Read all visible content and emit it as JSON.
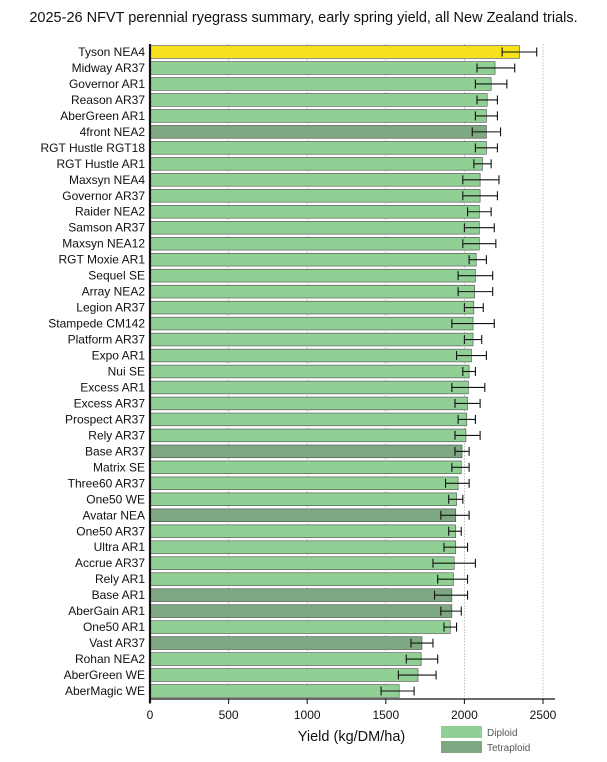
{
  "chart_data": {
    "type": "bar",
    "orientation": "horizontal",
    "title": "2025-26 NFVT perennial ryegrass summary, early spring yield, all New Zealand trials.",
    "xlabel": "Yield (kg/DM/ha)",
    "ylabel": "",
    "xlim": [
      0,
      2500
    ],
    "xticks": [
      0,
      500,
      1000,
      1500,
      2000,
      2500
    ],
    "grid": "vertical dotted",
    "legend_position": "bottom-right",
    "legend": [
      {
        "name": "Diploid",
        "color": "#90d094"
      },
      {
        "name": "Tetraploid",
        "color": "#7ea882"
      }
    ],
    "highlight_color": "#f5e21c",
    "categories": [
      "Tyson NEA4",
      "Midway AR37",
      "Governor AR1",
      "Reason AR37",
      "AberGreen AR1",
      "4front NEA2",
      "RGT Hustle RGT18",
      "RGT Hustle AR1",
      "Maxsyn NEA4",
      "Governor AR37",
      "Raider NEA2",
      "Samson AR37",
      "Maxsyn NEA12",
      "RGT Moxie AR1",
      "Sequel SE",
      "Array NEA2",
      "Legion AR37",
      "Stampede CM142",
      "Platform AR37",
      "Expo AR1",
      "Nui SE",
      "Excess AR1",
      "Excess AR37",
      "Prospect AR37",
      "Rely AR37",
      "Base AR37",
      "Matrix SE",
      "Three60 AR37",
      "One50 WE",
      "Avatar NEA",
      "One50 AR37",
      "Ultra AR1",
      "Accrue AR37",
      "Rely AR1",
      "Base AR1",
      "AberGain AR1",
      "One50 AR1",
      "Vast AR37",
      "Rohan NEA2",
      "AberGreen WE",
      "AberMagic WE"
    ],
    "values": [
      2350,
      2195,
      2170,
      2145,
      2140,
      2140,
      2140,
      2115,
      2100,
      2100,
      2095,
      2095,
      2095,
      2075,
      2070,
      2065,
      2060,
      2055,
      2055,
      2045,
      2030,
      2025,
      2020,
      2015,
      2010,
      1985,
      1980,
      1960,
      1950,
      1945,
      1945,
      1945,
      1935,
      1930,
      1920,
      1920,
      1910,
      1730,
      1725,
      1705,
      1585
    ],
    "error_low": [
      2240,
      2080,
      2070,
      2080,
      2070,
      2050,
      2070,
      2060,
      1990,
      1990,
      2020,
      2000,
      1990,
      2030,
      1960,
      1960,
      2000,
      1920,
      2000,
      1950,
      1990,
      1920,
      1940,
      1960,
      1940,
      1940,
      1920,
      1880,
      1900,
      1850,
      1900,
      1870,
      1800,
      1830,
      1810,
      1850,
      1870,
      1660,
      1630,
      1580,
      1470
    ],
    "error_high": [
      2460,
      2320,
      2270,
      2210,
      2210,
      2230,
      2210,
      2170,
      2220,
      2210,
      2170,
      2190,
      2200,
      2140,
      2180,
      2180,
      2120,
      2190,
      2110,
      2140,
      2070,
      2130,
      2100,
      2070,
      2100,
      2030,
      2030,
      2030,
      1990,
      2030,
      1980,
      2020,
      2070,
      2020,
      2020,
      1980,
      1950,
      1800,
      1830,
      1820,
      1680
    ],
    "ploidy": [
      "highlight",
      "Diploid",
      "Diploid",
      "Diploid",
      "Diploid",
      "Tetraploid",
      "Diploid",
      "Diploid",
      "Diploid",
      "Diploid",
      "Diploid",
      "Diploid",
      "Diploid",
      "Diploid",
      "Diploid",
      "Diploid",
      "Diploid",
      "Diploid",
      "Diploid",
      "Diploid",
      "Diploid",
      "Diploid",
      "Diploid",
      "Diploid",
      "Diploid",
      "Tetraploid",
      "Diploid",
      "Diploid",
      "Diploid",
      "Tetraploid",
      "Diploid",
      "Diploid",
      "Diploid",
      "Diploid",
      "Tetraploid",
      "Tetraploid",
      "Diploid",
      "Tetraploid",
      "Diploid",
      "Diploid",
      "Diploid"
    ]
  }
}
